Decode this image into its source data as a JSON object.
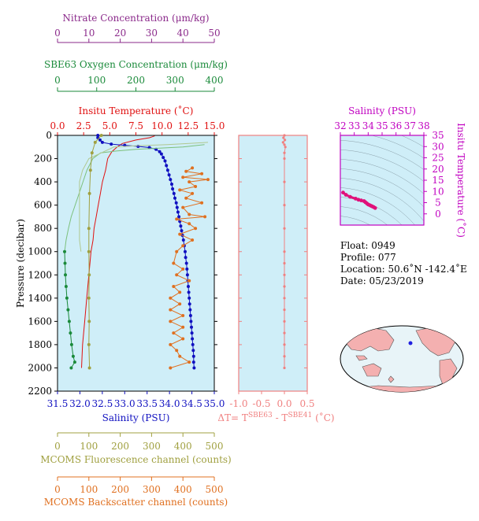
{
  "chart_data": [
    {
      "type": "line",
      "title": "",
      "ylabel": "Pressure (decibar)",
      "ylim": [
        2200,
        0
      ],
      "yticks": [
        "0",
        "200",
        "400",
        "600",
        "800",
        "1000",
        "1200",
        "1400",
        "1600",
        "1800",
        "2000",
        "2200"
      ],
      "axes": {
        "nitrate": {
          "label": "Nitrate Concentration (μm/kg)",
          "range": [
            0,
            50
          ],
          "ticks": [
            "0",
            "10",
            "20",
            "30",
            "40",
            "50"
          ],
          "color": "#8b2a8b"
        },
        "oxygen": {
          "label": "SBE63 Oxygen Concentration (μm/kg)",
          "range": [
            0,
            400
          ],
          "ticks": [
            "0",
            "100",
            "200",
            "300",
            "400"
          ],
          "color": "#1a8a3a"
        },
        "temperature": {
          "label": "Insitu Temperature (˚C)",
          "range": [
            0,
            15
          ],
          "ticks": [
            "0.0",
            "2.5",
            "5.0",
            "7.5",
            "10.0",
            "12.5",
            "15.0"
          ],
          "color": "#e01010"
        },
        "salinity": {
          "label": "Salinity (PSU)",
          "range": [
            31.5,
            35
          ],
          "ticks": [
            "31.5",
            "32.0",
            "32.5",
            "33.0",
            "33.5",
            "34.0",
            "34.5",
            "35.0"
          ],
          "color": "#1010c0"
        },
        "fluorescence": {
          "label": "MCOMS Fluorescence channel (counts)",
          "range": [
            0,
            500
          ],
          "ticks": [
            "0",
            "100",
            "200",
            "300",
            "400",
            "500"
          ],
          "color": "#a0a040"
        },
        "backscatter": {
          "label": "MCOMS Backscatter channel (counts)",
          "range": [
            0,
            500
          ],
          "ticks": [
            "0",
            "100",
            "200",
            "300",
            "400",
            "500"
          ],
          "color": "#e07020"
        }
      },
      "series": [
        {
          "name": "Insitu Temperature",
          "axis": "temperature",
          "color": "#e01010",
          "markers": false,
          "points": [
            [
              9.3,
              5
            ],
            [
              8.8,
              20
            ],
            [
              7.5,
              40
            ],
            [
              6.2,
              70
            ],
            [
              5.7,
              100
            ],
            [
              5.2,
              140
            ],
            [
              4.8,
              200
            ],
            [
              4.6,
              300
            ],
            [
              4.3,
              400
            ],
            [
              4.1,
              500
            ],
            [
              3.9,
              600
            ],
            [
              3.7,
              700
            ],
            [
              3.5,
              800
            ],
            [
              3.4,
              900
            ],
            [
              3.2,
              1000
            ],
            [
              3.0,
              1200
            ],
            [
              2.8,
              1400
            ],
            [
              2.6,
              1600
            ],
            [
              2.4,
              1800
            ],
            [
              2.3,
              2000
            ]
          ]
        },
        {
          "name": "Salinity",
          "axis": "salinity",
          "color": "#1010c0",
          "markers": true,
          "points": [
            [
              32.4,
              0
            ],
            [
              32.4,
              20
            ],
            [
              32.45,
              40
            ],
            [
              32.5,
              60
            ],
            [
              32.7,
              75
            ],
            [
              33.0,
              85
            ],
            [
              33.3,
              95
            ],
            [
              33.55,
              105
            ],
            [
              33.7,
              120
            ],
            [
              33.78,
              140
            ],
            [
              33.82,
              160
            ],
            [
              33.86,
              190
            ],
            [
              33.9,
              220
            ],
            [
              33.93,
              260
            ],
            [
              33.96,
              300
            ],
            [
              33.99,
              340
            ],
            [
              34.02,
              380
            ],
            [
              34.05,
              420
            ],
            [
              34.07,
              460
            ],
            [
              34.1,
              500
            ],
            [
              34.12,
              540
            ],
            [
              34.15,
              580
            ],
            [
              34.17,
              620
            ],
            [
              34.19,
              660
            ],
            [
              34.21,
              700
            ],
            [
              34.23,
              740
            ],
            [
              34.25,
              780
            ],
            [
              34.27,
              820
            ],
            [
              34.29,
              860
            ],
            [
              34.31,
              900
            ],
            [
              34.33,
              950
            ],
            [
              34.35,
              1000
            ],
            [
              34.36,
              1050
            ],
            [
              34.38,
              1100
            ],
            [
              34.39,
              1150
            ],
            [
              34.4,
              1200
            ],
            [
              34.41,
              1250
            ],
            [
              34.42,
              1300
            ],
            [
              34.43,
              1350
            ],
            [
              34.44,
              1400
            ],
            [
              34.45,
              1450
            ],
            [
              34.46,
              1500
            ],
            [
              34.47,
              1550
            ],
            [
              34.48,
              1600
            ],
            [
              34.49,
              1650
            ],
            [
              34.5,
              1700
            ],
            [
              34.51,
              1750
            ],
            [
              34.52,
              1800
            ],
            [
              34.53,
              1850
            ],
            [
              34.54,
              1900
            ],
            [
              34.54,
              1950
            ],
            [
              34.55,
              2000
            ]
          ]
        },
        {
          "name": "Oxygen",
          "axis": "oxygen",
          "color": "#7cc07c",
          "markers": false,
          "points": [
            [
              375,
              80
            ],
            [
              320,
              100
            ],
            [
              260,
              110
            ],
            [
              200,
              120
            ],
            [
              150,
              135
            ],
            [
              110,
              150
            ],
            [
              90,
              200
            ],
            [
              75,
              300
            ],
            [
              65,
              400
            ],
            [
              55,
              500
            ],
            [
              45,
              600
            ],
            [
              35,
              700
            ],
            [
              28,
              800
            ],
            [
              22,
              900
            ],
            [
              18,
              1000
            ]
          ]
        },
        {
          "name": "Oxygen (deep)",
          "axis": "oxygen",
          "color": "#1a8a3a",
          "markers": true,
          "points": [
            [
              18,
              1000
            ],
            [
              19,
              1100
            ],
            [
              20,
              1200
            ],
            [
              22,
              1300
            ],
            [
              24,
              1400
            ],
            [
              27,
              1500
            ],
            [
              30,
              1600
            ],
            [
              33,
              1700
            ],
            [
              36,
              1800
            ],
            [
              40,
              1900
            ],
            [
              44,
              1950
            ],
            [
              35,
              2000
            ]
          ]
        },
        {
          "name": "Nitrate",
          "axis": "nitrate",
          "color": "#b0c890",
          "markers": false,
          "points": [
            [
              48,
              60
            ],
            [
              42,
              70
            ],
            [
              35,
              80
            ],
            [
              25,
              90
            ],
            [
              18,
              100
            ],
            [
              14,
              150
            ],
            [
              10,
              200
            ],
            [
              8,
              300
            ],
            [
              7,
              400
            ],
            [
              7,
              500
            ],
            [
              7,
              600
            ],
            [
              7,
              700
            ],
            [
              7,
              800
            ],
            [
              7,
              900
            ],
            [
              7.5,
              1000
            ]
          ]
        },
        {
          "name": "Fluorescence",
          "axis": "fluorescence",
          "color": "#a0a040",
          "markers": true,
          "points": [
            [
              140,
              0
            ],
            [
              120,
              60
            ],
            [
              110,
              150
            ],
            [
              105,
              300
            ],
            [
              102,
              500
            ],
            [
              100,
              800
            ],
            [
              100,
              1000
            ],
            [
              101,
              1200
            ],
            [
              100,
              1400
            ],
            [
              101,
              1600
            ],
            [
              100,
              1800
            ],
            [
              102,
              2000
            ]
          ]
        },
        {
          "name": "Backscatter",
          "axis": "backscatter",
          "color": "#e07020",
          "markers": true,
          "points": [
            [
              430,
              280
            ],
            [
              410,
              310
            ],
            [
              460,
              330
            ],
            [
              400,
              360
            ],
            [
              480,
              380
            ],
            [
              420,
              400
            ],
            [
              440,
              440
            ],
            [
              390,
              470
            ],
            [
              430,
              500
            ],
            [
              410,
              540
            ],
            [
              460,
              580
            ],
            [
              400,
              620
            ],
            [
              420,
              680
            ],
            [
              470,
              700
            ],
            [
              380,
              720
            ],
            [
              420,
              760
            ],
            [
              440,
              800
            ],
            [
              390,
              850
            ],
            [
              430,
              900
            ],
            [
              400,
              950
            ],
            [
              380,
              1000
            ],
            [
              370,
              1100
            ],
            [
              400,
              1150
            ],
            [
              380,
              1200
            ],
            [
              420,
              1250
            ],
            [
              370,
              1300
            ],
            [
              390,
              1350
            ],
            [
              360,
              1400
            ],
            [
              390,
              1450
            ],
            [
              360,
              1500
            ],
            [
              400,
              1550
            ],
            [
              360,
              1600
            ],
            [
              400,
              1650
            ],
            [
              370,
              1700
            ],
            [
              400,
              1750
            ],
            [
              360,
              1800
            ],
            [
              380,
              1850
            ],
            [
              390,
              1900
            ],
            [
              420,
              1950
            ],
            [
              360,
              2000
            ]
          ]
        }
      ]
    },
    {
      "type": "line",
      "xlabel": "ΔT= T",
      "xlabel_sup1": "SBE63",
      "xlabel_mid": " - T",
      "xlabel_sup2": "SBE41",
      "xlabel_unit": " (˚C)",
      "xlim": [
        -1.0,
        0.5
      ],
      "xticks": [
        "-1.0",
        "-0.5",
        "0.0",
        "0.5"
      ],
      "color": "#f08080",
      "points": [
        [
          0.0,
          0
        ],
        [
          -0.02,
          20
        ],
        [
          0.01,
          40
        ],
        [
          -0.03,
          60
        ],
        [
          0.0,
          80
        ],
        [
          0.02,
          100
        ],
        [
          0.0,
          150
        ],
        [
          0.0,
          200
        ],
        [
          0.0,
          400
        ],
        [
          0.0,
          600
        ],
        [
          0.0,
          800
        ],
        [
          0.0,
          1000
        ],
        [
          0.0,
          1100
        ],
        [
          0.0,
          1200
        ],
        [
          0.0,
          1300
        ],
        [
          0.0,
          1400
        ],
        [
          0.0,
          1500
        ],
        [
          0.0,
          1600
        ],
        [
          0.0,
          1700
        ],
        [
          0.0,
          1800
        ],
        [
          0.0,
          1900
        ],
        [
          0.0,
          2000
        ]
      ]
    },
    {
      "type": "scatter",
      "xlabel": "Salinity (PSU)",
      "ylabel": "Insitu Temperature (˚C)",
      "xlim": [
        32,
        38
      ],
      "ylim": [
        -5,
        35
      ],
      "xticks": [
        "32",
        "33",
        "34",
        "35",
        "36",
        "37",
        "38"
      ],
      "yticks": [
        "0",
        "5",
        "10",
        "15",
        "20",
        "25",
        "30",
        "35"
      ],
      "color": "#e0107a",
      "points": [
        [
          32.2,
          9.5
        ],
        [
          32.4,
          8.5
        ],
        [
          32.7,
          7.6
        ],
        [
          33.1,
          6.8
        ],
        [
          33.3,
          6.3
        ],
        [
          33.5,
          6.0
        ],
        [
          33.7,
          5.7
        ],
        [
          33.8,
          5.2
        ],
        [
          33.9,
          4.7
        ],
        [
          34.0,
          4.2
        ],
        [
          34.1,
          3.9
        ],
        [
          34.2,
          3.6
        ],
        [
          34.3,
          3.3
        ],
        [
          34.4,
          3.0
        ],
        [
          34.5,
          2.6
        ]
      ]
    }
  ],
  "info": {
    "float": "Float:  0949",
    "profile": "Profile:  077",
    "location": "Location:  50.6˚N  -142.4˚E",
    "date": "Date:  05/23/2019"
  },
  "map": {
    "marker_color": "#2020e0",
    "land_color": "#f4b0b0",
    "ocean_color": "#e8f4f8"
  }
}
